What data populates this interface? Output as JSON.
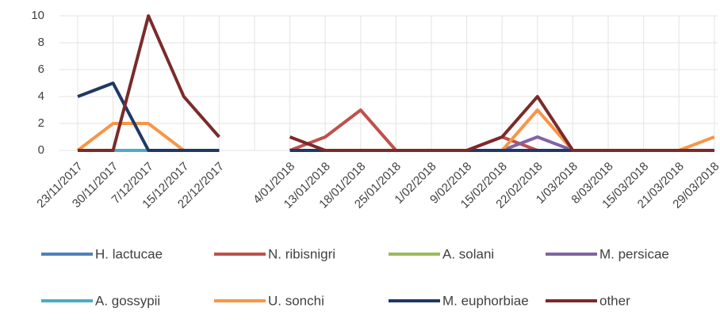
{
  "chart_data": {
    "type": "line",
    "categories": [
      "23/11/2017",
      "30/11/2017",
      "7/12/2017",
      "15/12/2017",
      "22/12/2017",
      null,
      "4/01/2018",
      "13/01/2018",
      "18/01/2018",
      "25/01/2018",
      "1/02/2018",
      "9/02/2018",
      "15/02/2018",
      "22/02/2018",
      "1/03/2018",
      "8/03/2018",
      "15/03/2018",
      "21/03/2018",
      "29/03/2018"
    ],
    "series": [
      {
        "name": "H. lactucae",
        "color": "#4f81bd",
        "values": [
          0,
          0,
          0,
          0,
          0,
          null,
          0,
          0,
          0,
          0,
          0,
          0,
          0,
          0,
          0,
          0,
          0,
          0,
          0
        ]
      },
      {
        "name": "N. ribisnigri",
        "color": "#c0504d",
        "values": [
          0,
          0,
          0,
          0,
          0,
          null,
          0,
          1,
          3,
          0,
          0,
          0,
          1,
          0,
          0,
          0,
          0,
          0,
          0
        ]
      },
      {
        "name": "A. solani",
        "color": "#9bbb59",
        "values": [
          0,
          0,
          0,
          0,
          0,
          null,
          0,
          0,
          0,
          0,
          0,
          0,
          0,
          0,
          0,
          0,
          0,
          0,
          0
        ]
      },
      {
        "name": "M. persicae",
        "color": "#8064a2",
        "values": [
          0,
          0,
          0,
          0,
          0,
          null,
          0,
          0,
          0,
          0,
          0,
          0,
          0,
          1,
          0,
          0,
          0,
          0,
          0
        ]
      },
      {
        "name": "A. gossypii",
        "color": "#4bacc6",
        "values": [
          0,
          0,
          0,
          0,
          0,
          null,
          0,
          0,
          0,
          0,
          0,
          0,
          0,
          0,
          0,
          0,
          0,
          0,
          0
        ]
      },
      {
        "name": "U. sonchi",
        "color": "#f79646",
        "values": [
          0,
          2,
          2,
          0,
          null,
          null,
          0,
          0,
          0,
          0,
          0,
          0,
          0,
          3,
          0,
          0,
          0,
          0,
          1
        ]
      },
      {
        "name": "M. euphorbiae",
        "color": "#1f3864",
        "values": [
          4,
          5,
          0,
          0,
          0,
          null,
          0,
          0,
          0,
          0,
          0,
          0,
          0,
          0,
          0,
          0,
          0,
          0,
          0
        ]
      },
      {
        "name": "other",
        "color": "#7b2a2a",
        "values": [
          0,
          0,
          10,
          4,
          1,
          null,
          1,
          0,
          0,
          0,
          0,
          0,
          1,
          4,
          0,
          0,
          0,
          0,
          0
        ]
      }
    ],
    "ylim": [
      0,
      10
    ],
    "yticks": [
      0,
      2,
      4,
      6,
      8,
      10
    ],
    "grid": true
  }
}
